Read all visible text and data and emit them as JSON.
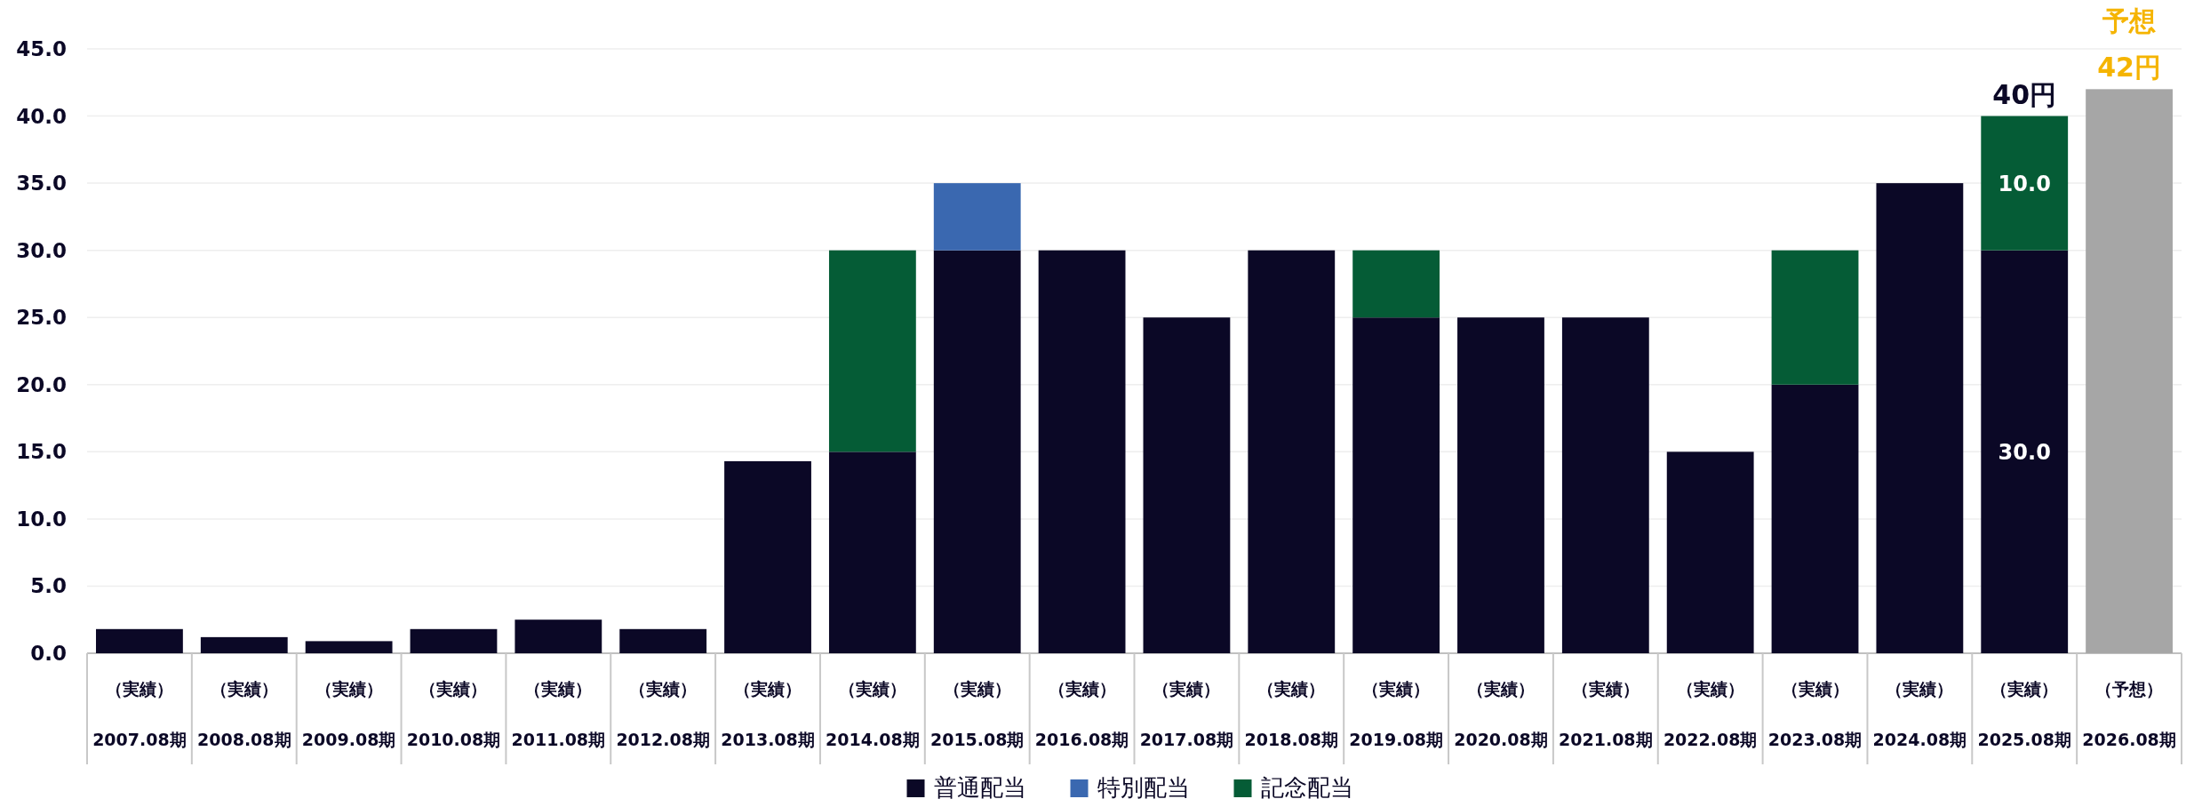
{
  "chart_data": {
    "type": "bar",
    "stacked": true,
    "categories": [
      "（実績）\n2007.08期",
      "（実績）\n2008.08期",
      "（実績）\n2009.08期",
      "（実績）\n2010.08期",
      "（実績）\n2011.08期",
      "（実績）\n2012.08期",
      "（実績）\n2013.08期",
      "（実績）\n2014.08期",
      "（実績）\n2015.08期",
      "（実績）\n2016.08期",
      "（実績）\n2017.08期",
      "（実績）\n2018.08期",
      "（実績）\n2019.08期",
      "（実績）\n2020.08期",
      "（実績）\n2021.08期",
      "（実績）\n2022.08期",
      "（実績）\n2023.08期",
      "（実績）\n2024.08期",
      "（実績）\n2025.08期",
      "（予想）\n2026.08期"
    ],
    "series": [
      {
        "name": "普通配当",
        "color": "#0b0826",
        "values": [
          1.8,
          1.2,
          0.9,
          1.8,
          2.5,
          1.8,
          14.3,
          15,
          30,
          30,
          25,
          30,
          25,
          25,
          25,
          15,
          20,
          35,
          30,
          null
        ],
        "value_labels": [
          null,
          null,
          null,
          null,
          null,
          null,
          null,
          null,
          null,
          null,
          null,
          null,
          null,
          null,
          null,
          null,
          null,
          null,
          "30.0",
          null
        ]
      },
      {
        "name": "特別配当",
        "color": "#3a68b0",
        "values": [
          null,
          null,
          null,
          null,
          null,
          null,
          null,
          null,
          5,
          null,
          null,
          null,
          null,
          null,
          null,
          null,
          null,
          null,
          null,
          null
        ]
      },
      {
        "name": "記念配当",
        "color": "#055c36",
        "values": [
          null,
          null,
          null,
          null,
          null,
          null,
          null,
          15,
          null,
          null,
          null,
          null,
          5,
          null,
          null,
          null,
          10,
          null,
          10,
          null
        ],
        "value_labels": [
          null,
          null,
          null,
          null,
          null,
          null,
          null,
          null,
          null,
          null,
          null,
          null,
          null,
          null,
          null,
          null,
          null,
          null,
          "10.0",
          null
        ]
      },
      {
        "color": "#a6a6a6",
        "values": [
          null,
          null,
          null,
          null,
          null,
          null,
          null,
          null,
          null,
          null,
          null,
          null,
          null,
          null,
          null,
          null,
          null,
          null,
          null,
          42
        ]
      }
    ],
    "ylim": [
      0,
      45
    ],
    "yticks": [
      {
        "value": 0,
        "label": "0.0"
      },
      {
        "value": 5,
        "label": "5.0"
      },
      {
        "value": 10,
        "label": "10.0"
      },
      {
        "value": 15,
        "label": "15.0"
      },
      {
        "value": 20,
        "label": "20.0"
      },
      {
        "value": 25,
        "label": "25.0"
      },
      {
        "value": 30,
        "label": "30.0"
      },
      {
        "value": 35,
        "label": "35.0"
      },
      {
        "value": 40,
        "label": "40.0"
      },
      {
        "value": 45,
        "label": "45.0"
      }
    ],
    "grid": "y",
    "legend": "bottom",
    "annotations": [
      {
        "text": "40円",
        "x": "（実績）\n2025.08期",
        "y": 40
      },
      {
        "text": "予想\n42円",
        "x": "（予想）\n2026.08期",
        "y": 42
      }
    ]
  }
}
